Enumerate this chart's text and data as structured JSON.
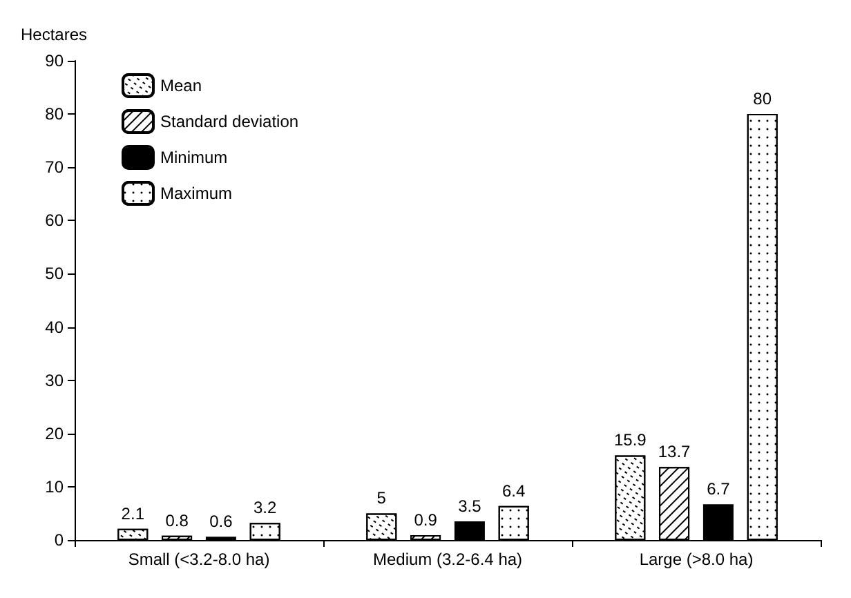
{
  "chart_data": {
    "type": "bar",
    "ylabel": "Hectares",
    "categories": [
      "Small (<3.2-8.0 ha)",
      "Medium (3.2-6.4 ha)",
      "Large (>8.0 ha)"
    ],
    "series": [
      {
        "name": "Mean",
        "color": "#ffffff",
        "values": [
          2.1,
          5,
          15.9
        ]
      },
      {
        "name": "Standard deviation",
        "color": "#ffffff",
        "values": [
          0.8,
          0.9,
          13.7
        ]
      },
      {
        "name": "Minimum",
        "color": "#000000",
        "values": [
          0.6,
          3.5,
          6.7
        ]
      },
      {
        "name": "Maximum",
        "color": "#ffffff",
        "values": [
          3.2,
          6.4,
          80
        ]
      }
    ],
    "ylim": [
      0,
      90
    ],
    "yticks": [
      0,
      10,
      20,
      30,
      40,
      50,
      60,
      70,
      80,
      90
    ],
    "grid": false,
    "legend": "top left",
    "data_labels": true
  }
}
